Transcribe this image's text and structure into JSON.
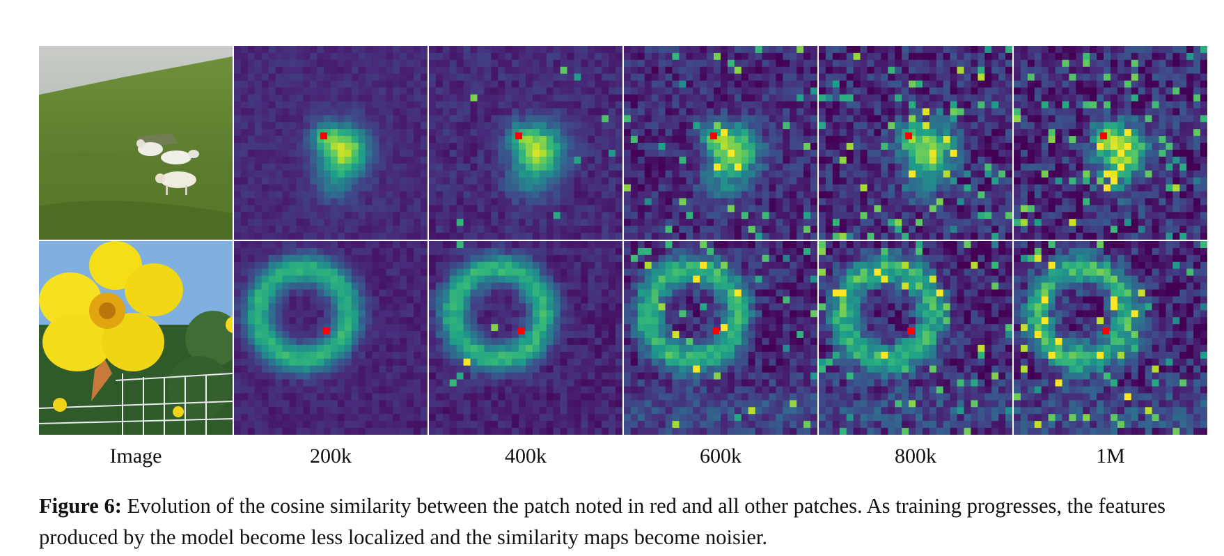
{
  "figure": {
    "columns": [
      "Image",
      "200k",
      "400k",
      "600k",
      "800k",
      "1M"
    ],
    "rows": [
      {
        "photo_icon": "sheep-on-hillside-photo",
        "query_patch_color": "#ff0000"
      },
      {
        "photo_icon": "yellow-flower-photo",
        "query_patch_color": "#ff0000"
      }
    ],
    "colormap": "viridis"
  },
  "caption": {
    "label": "Figure 6:",
    "text": "Evolution of the cosine similarity between the patch noted in red and all other patches. As training progresses, the features produced by the model become less localized and the similarity maps become noisier."
  }
}
